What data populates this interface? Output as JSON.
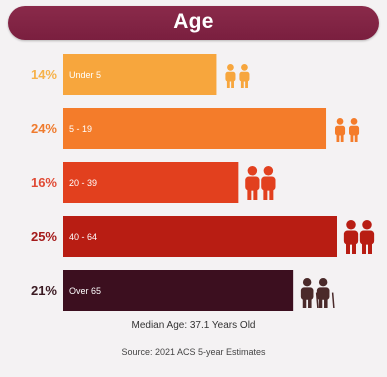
{
  "chart_data": {
    "type": "bar",
    "orientation": "horizontal",
    "title": "Age",
    "categories": [
      "Under 5",
      "5 - 19",
      "20 - 39",
      "40 - 64",
      "Over 65"
    ],
    "values": [
      14,
      24,
      16,
      25,
      21
    ],
    "value_labels": [
      "14%",
      "24%",
      "16%",
      "25%",
      "21%"
    ],
    "bar_colors": [
      "#f7a63d",
      "#f47c2a",
      "#e2401e",
      "#b81d13",
      "#3c0f1f"
    ],
    "label_colors": [
      "#f6b24a",
      "#ef7b2d",
      "#e04a34",
      "#a41a1a",
      "#3a1a22"
    ],
    "icons": [
      "child-pair-icon",
      "child-pair-icon",
      "adult-pair-icon",
      "adult-pair-icon",
      "senior-pair-icon"
    ],
    "xlim": [
      0,
      25
    ],
    "grid": false,
    "legend": "none"
  },
  "footer": {
    "median": "Median Age: 37.1 Years Old",
    "source": "Source: 2021 ACS 5-year Estimates"
  }
}
